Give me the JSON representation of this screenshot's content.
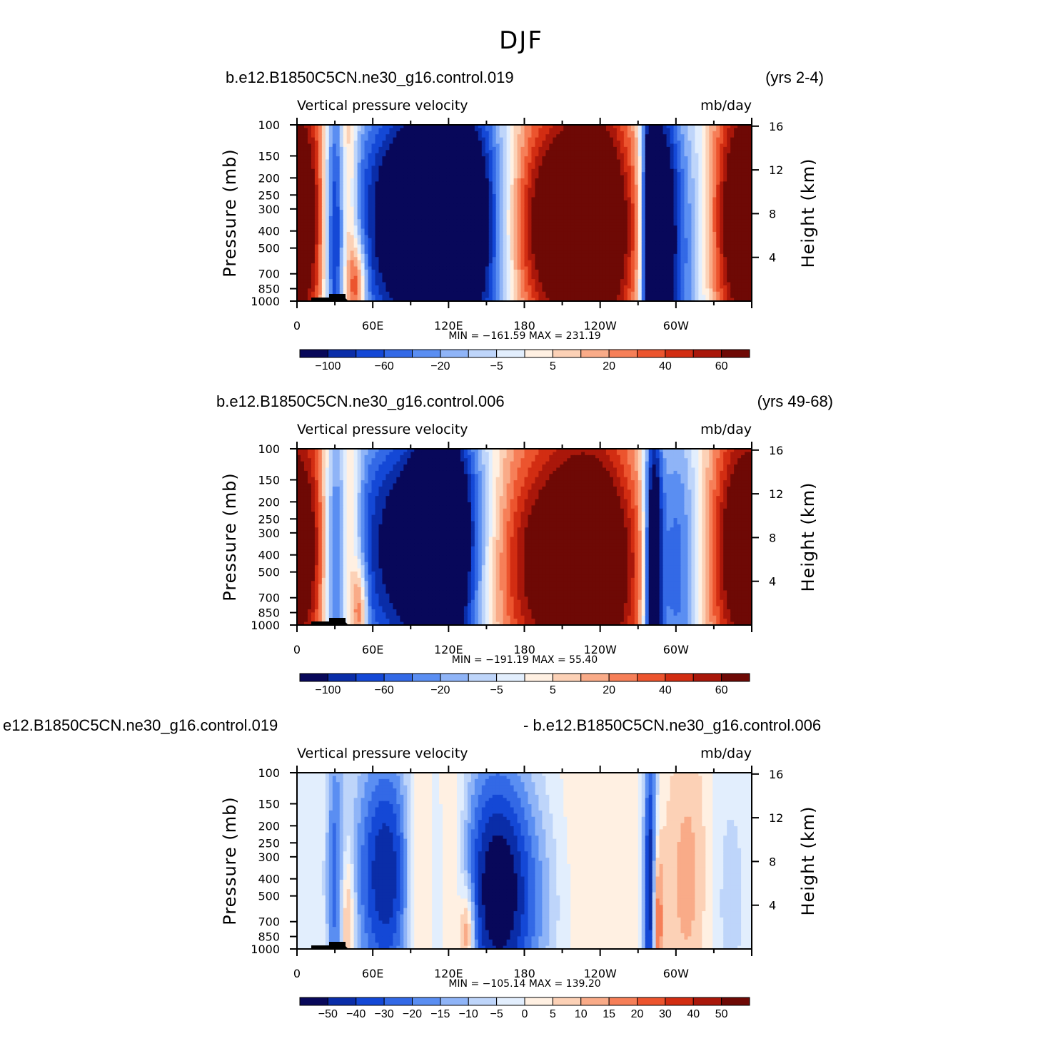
{
  "figure": {
    "title": "DJF"
  },
  "colors": {
    "palette": [
      "#08085a",
      "#0a2da8",
      "#1448d6",
      "#3369e6",
      "#5a8ef2",
      "#8fb4f7",
      "#bed5fa",
      "#e2eefd",
      "#fff0e2",
      "#fcd1b6",
      "#f9ab88",
      "#f67f58",
      "#ec542e",
      "#d22d12",
      "#a9170a",
      "#6e0905"
    ]
  },
  "chart_data": [
    {
      "type": "contour",
      "case": "b.e12.B1850C5CN.ne30_g16.control.019",
      "years": "(yrs 2-4)",
      "variable": "Vertical pressure velocity",
      "units": "mb/day",
      "ylabel": "Pressure (mb)",
      "y2label": "Height (km)",
      "xticks": [
        "0",
        "60E",
        "120E",
        "180",
        "120W",
        "60W"
      ],
      "yticks": [
        "100",
        "150",
        "200",
        "250",
        "300",
        "400",
        "500",
        "700",
        "850",
        "1000"
      ],
      "y2ticks": [
        "16",
        "12",
        "8",
        "4"
      ],
      "minmax": "MIN = −161.59   MAX = 231.19",
      "colorbar_labels": [
        "−100",
        "−60",
        "−20",
        "−5",
        "5",
        "20",
        "40",
        "60"
      ],
      "colorbar_label_bins": [
        1,
        3,
        5,
        7,
        9,
        11,
        13,
        15
      ],
      "fields": [
        {
          "lon": 15,
          "w": 30,
          "p": 300,
          "h": 1.4,
          "a": 4.0
        },
        {
          "lon": 30,
          "w": 7,
          "p": 400,
          "h": 1.6,
          "a": -8.0
        },
        {
          "lon": 40,
          "w": 5,
          "p": 350,
          "h": 1.7,
          "a": 5.0
        },
        {
          "lon": 48,
          "w": 5,
          "p": 800,
          "h": 0.4,
          "a": 6.0
        },
        {
          "lon": 80,
          "w": 40,
          "p": 380,
          "h": 1.2,
          "a": -9.0
        },
        {
          "lon": 110,
          "w": 18,
          "p": 350,
          "h": 1.2,
          "a": -6.0
        },
        {
          "lon": 135,
          "w": 25,
          "p": 330,
          "h": 1.2,
          "a": -6.0
        },
        {
          "lon": 150,
          "w": 20,
          "p": 500,
          "h": 1.3,
          "a": -4.0
        },
        {
          "lon": 205,
          "w": 40,
          "p": 330,
          "h": 1.2,
          "a": 10.0
        },
        {
          "lon": 240,
          "w": 22,
          "p": 350,
          "h": 1.4,
          "a": 6.0
        },
        {
          "lon": 280,
          "w": 5,
          "p": 450,
          "h": 1.5,
          "a": -12.0
        },
        {
          "lon": 290,
          "w": 8,
          "p": 400,
          "h": 1.5,
          "a": -7.0
        },
        {
          "lon": 305,
          "w": 18,
          "p": 500,
          "h": 1.3,
          "a": -5.0
        },
        {
          "lon": 355,
          "w": 22,
          "p": 330,
          "h": 1.4,
          "a": 9.0
        },
        {
          "lon": 175,
          "w": 150,
          "p": 140,
          "h": 0.6,
          "a": -1.0
        }
      ]
    },
    {
      "type": "contour",
      "case": "b.e12.B1850C5CN.ne30_g16.control.006",
      "years": "(yrs 49-68)",
      "variable": "Vertical pressure velocity",
      "units": "mb/day",
      "ylabel": "Pressure (mb)",
      "y2label": "Height (km)",
      "xticks": [
        "0",
        "60E",
        "120E",
        "180",
        "120W",
        "60W"
      ],
      "yticks": [
        "100",
        "150",
        "200",
        "250",
        "300",
        "400",
        "500",
        "700",
        "850",
        "1000"
      ],
      "y2ticks": [
        "16",
        "12",
        "8",
        "4"
      ],
      "minmax": "MIN = −191.19   MAX =   55.40",
      "colorbar_labels": [
        "−100",
        "−60",
        "−20",
        "−5",
        "5",
        "20",
        "40",
        "60"
      ],
      "colorbar_label_bins": [
        1,
        3,
        5,
        7,
        9,
        11,
        13,
        15
      ],
      "fields": [
        {
          "lon": 12,
          "w": 28,
          "p": 320,
          "h": 1.4,
          "a": 4.0
        },
        {
          "lon": 30,
          "w": 7,
          "p": 450,
          "h": 1.6,
          "a": -6.0
        },
        {
          "lon": 42,
          "w": 6,
          "p": 420,
          "h": 1.6,
          "a": 4.0
        },
        {
          "lon": 50,
          "w": 4,
          "p": 800,
          "h": 0.4,
          "a": 5.0
        },
        {
          "lon": 80,
          "w": 40,
          "p": 400,
          "h": 1.2,
          "a": -8.0
        },
        {
          "lon": 112,
          "w": 16,
          "p": 350,
          "h": 1.2,
          "a": -7.0
        },
        {
          "lon": 130,
          "w": 20,
          "p": 380,
          "h": 1.3,
          "a": -5.0
        },
        {
          "lon": 205,
          "w": 45,
          "p": 380,
          "h": 1.4,
          "a": 9.0
        },
        {
          "lon": 240,
          "w": 25,
          "p": 450,
          "h": 1.4,
          "a": 5.0
        },
        {
          "lon": 282,
          "w": 5,
          "p": 500,
          "h": 1.5,
          "a": -11.0
        },
        {
          "lon": 300,
          "w": 14,
          "p": 500,
          "h": 1.3,
          "a": -6.0
        },
        {
          "lon": 355,
          "w": 22,
          "p": 350,
          "h": 1.4,
          "a": 8.0
        },
        {
          "lon": 165,
          "w": 160,
          "p": 140,
          "h": 0.6,
          "a": -1.0
        }
      ]
    },
    {
      "type": "contour",
      "case": "e12.B1850C5CN.ne30_g16.control.019",
      "years": "- b.e12.B1850C5CN.ne30_g16.control.006",
      "variable": "Vertical pressure velocity",
      "units": "mb/day",
      "ylabel": "Pressure (mb)",
      "y2label": "Height (km)",
      "xticks": [
        "0",
        "60E",
        "120E",
        "180",
        "120W",
        "60W"
      ],
      "yticks": [
        "100",
        "150",
        "200",
        "250",
        "300",
        "400",
        "500",
        "700",
        "850",
        "1000"
      ],
      "y2ticks": [
        "16",
        "12",
        "8",
        "4"
      ],
      "minmax": "MIN = −105.14   MAX = 139.20",
      "colorbar_labels": [
        "−50",
        "−40",
        "−30",
        "−20",
        "−15",
        "−10",
        "−5",
        "0",
        "5",
        "10",
        "15",
        "20",
        "30",
        "40",
        "50"
      ],
      "colorbar_label_bins": [
        1,
        2,
        3,
        4,
        5,
        6,
        7,
        8,
        9,
        10,
        11,
        12,
        13,
        14,
        15
      ],
      "fields": [
        {
          "lon": 30,
          "w": 5,
          "p": 400,
          "h": 1.5,
          "a": -4.0
        },
        {
          "lon": 40,
          "w": 4,
          "p": 700,
          "h": 0.7,
          "a": 4.0
        },
        {
          "lon": 70,
          "w": 18,
          "p": 380,
          "h": 1.2,
          "a": -7.0
        },
        {
          "lon": 95,
          "w": 8,
          "p": 400,
          "h": 1.3,
          "a": 3.0
        },
        {
          "lon": 125,
          "w": 8,
          "p": 450,
          "h": 1.4,
          "a": 2.5
        },
        {
          "lon": 135,
          "w": 4,
          "p": 800,
          "h": 0.4,
          "a": 5.0
        },
        {
          "lon": 155,
          "w": 20,
          "p": 450,
          "h": 1.3,
          "a": -6.0
        },
        {
          "lon": 180,
          "w": 25,
          "p": 500,
          "h": 1.2,
          "a": -4.0
        },
        {
          "lon": 210,
          "w": 30,
          "p": 400,
          "h": 1.4,
          "a": 1.5
        },
        {
          "lon": 280,
          "w": 4,
          "p": 500,
          "h": 1.5,
          "a": -8.0
        },
        {
          "lon": 285,
          "w": 3,
          "p": 700,
          "h": 0.8,
          "a": 6.0
        },
        {
          "lon": 310,
          "w": 14,
          "p": 400,
          "h": 1.4,
          "a": 2.5
        },
        {
          "lon": 340,
          "w": 14,
          "p": 500,
          "h": 1.4,
          "a": -1.5
        }
      ]
    }
  ]
}
